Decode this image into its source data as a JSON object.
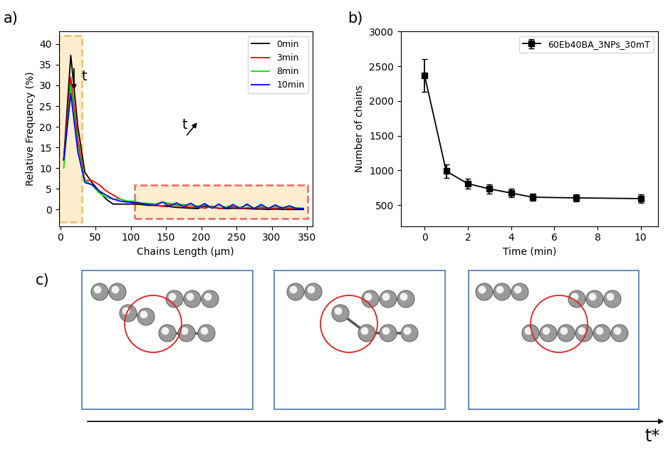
{
  "chart_data": [
    {
      "type": "line",
      "label": "a)",
      "x_label": "Chains Length (μm)",
      "y_label": "Relative Frequency (%)",
      "x": [
        5,
        15,
        25,
        35,
        45,
        55,
        65,
        75,
        85,
        95,
        105,
        115,
        125,
        135,
        145,
        155,
        165,
        175,
        185,
        195,
        205,
        215,
        225,
        235,
        245,
        255,
        265,
        275,
        285,
        295,
        305,
        315,
        325,
        335,
        345
      ],
      "series": [
        {
          "name": "0min",
          "color": "#000000",
          "values": [
            12,
            37.3,
            20,
            9,
            6.5,
            4.5,
            2.5,
            1.3,
            1.3,
            1.3,
            1.3,
            1.2,
            1.0,
            1.0,
            0.8,
            0.7,
            0.5,
            0.4,
            0.3,
            0.2,
            0.8,
            0.5,
            0.3,
            0.2,
            0.3,
            0.2,
            0.2,
            0.1,
            0.1,
            0,
            0.1,
            0,
            0,
            0,
            0
          ]
        },
        {
          "name": "3min",
          "color": "#ff0000",
          "values": [
            12,
            32,
            17,
            7,
            7,
            6,
            4.5,
            3.5,
            2.5,
            2,
            1.5,
            1.5,
            1.2,
            1.0,
            0.8,
            1.2,
            1.0,
            0.8,
            0.5,
            0.6,
            0.3,
            0.8,
            0.2,
            0.5,
            0.6,
            0.2,
            0.4,
            0.3,
            0.5,
            0.2,
            0.3,
            0.5,
            0.2,
            0.3,
            0.2
          ]
        },
        {
          "name": "8min",
          "color": "#00e000",
          "values": [
            10,
            30,
            15,
            7,
            6,
            4,
            3,
            2.5,
            2.5,
            2,
            2,
            1.5,
            1.5,
            1.3,
            1.8,
            1.5,
            1.2,
            1.2,
            1.0,
            0.8,
            1.2,
            0.5,
            1.0,
            0.6,
            1.0,
            0.5,
            1.0,
            0.3,
            0.8,
            0.4,
            0.7,
            0.4,
            0.6,
            0.4,
            0.3
          ]
        },
        {
          "name": "10min",
          "color": "#0000ff",
          "values": [
            12,
            28,
            14,
            6.5,
            6,
            4.5,
            3.5,
            2.5,
            2,
            1.8,
            1.7,
            1.5,
            1.2,
            1.0,
            1.8,
            0.8,
            1.6,
            0.7,
            1.5,
            0.5,
            1.4,
            0.3,
            1.3,
            0.2,
            1.2,
            0.2,
            1.3,
            0.2,
            1.2,
            0.2,
            1.1,
            0.3,
            0.9,
            0.2,
            0.2
          ]
        }
      ],
      "xlim": [
        -2,
        358
      ],
      "xticks": [
        0,
        50,
        100,
        150,
        200,
        250,
        300,
        350
      ],
      "ylim": [
        -4,
        43
      ],
      "yticks": [
        0,
        5,
        10,
        15,
        20,
        25,
        30,
        35,
        40
      ],
      "legend": "upper right",
      "annotations": [
        "t",
        "t"
      ]
    },
    {
      "type": "line",
      "label": "b)",
      "x_label": "Time (min)",
      "y_label": "Number of chains",
      "x": [
        0,
        1,
        2,
        3,
        4,
        5,
        7,
        10
      ],
      "series": [
        {
          "name": "60Eb40BA_3NPs_30mT",
          "color": "#000000",
          "marker": "square",
          "values": [
            2370,
            990,
            810,
            735,
            675,
            615,
            605,
            595
          ],
          "errors": [
            235,
            95,
            75,
            65,
            60,
            55,
            55,
            60
          ]
        }
      ],
      "xlim": [
        -1.1,
        10.8
      ],
      "xticks": [
        0,
        2,
        4,
        6,
        8,
        10
      ],
      "ylim": [
        200,
        3000
      ],
      "yticks": [
        500,
        1000,
        1500,
        2000,
        2500,
        3000
      ],
      "legend": "upper right"
    }
  ],
  "diagram": {
    "label": "c)",
    "time_axis_label": "t*"
  }
}
